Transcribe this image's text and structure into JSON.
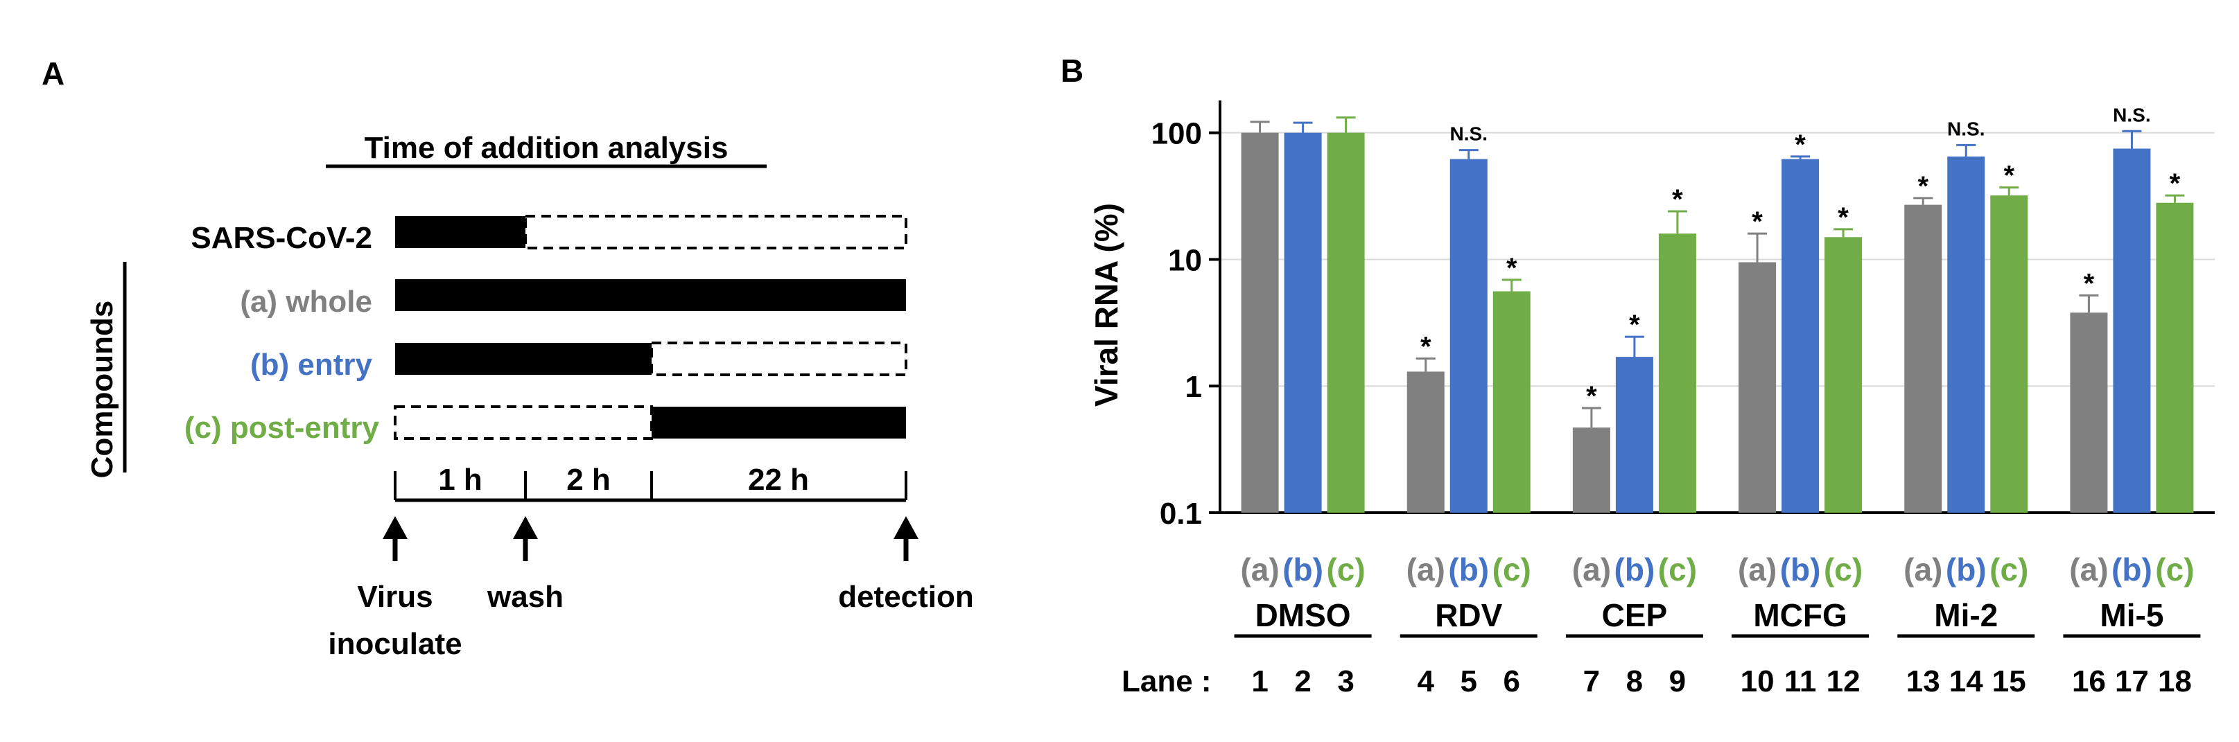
{
  "panel_a": {
    "letter": "A",
    "title": "Time of addition analysis",
    "y_group_label": "Compounds",
    "rows": [
      {
        "label": "SARS-CoV-2",
        "color": "#000000"
      },
      {
        "label": "(a) whole",
        "color": "#808080"
      },
      {
        "label": "(b) entry",
        "color": "#4472C4"
      },
      {
        "label": "(c) post-entry",
        "color": "#70AD47"
      }
    ],
    "timeline": {
      "segments": [
        "1 h",
        "2 h",
        "22 h"
      ],
      "events": [
        {
          "line1": "Virus",
          "line2": "inoculate"
        },
        {
          "line1": "wash",
          "line2": ""
        },
        {
          "line1": "detection",
          "line2": ""
        }
      ]
    }
  },
  "panel_b": {
    "letter": "B",
    "lane_label": "Lane :",
    "group_sublabels": [
      "(a)",
      "(b)",
      "(c)"
    ],
    "colors": {
      "a": "#808080",
      "b": "#4472C4",
      "c": "#70AD47"
    }
  },
  "chart_data": {
    "type": "bar",
    "yscale": "log",
    "ylabel": "Viral RNA (%)",
    "ylim": [
      0.1,
      180
    ],
    "yticks": [
      0.1,
      1,
      10,
      100
    ],
    "ytick_labels": [
      "0.1",
      "1",
      "10",
      "100"
    ],
    "categories": [
      "DMSO",
      "RDV",
      "CEP",
      "MCFG",
      "Mi-2",
      "Mi-5"
    ],
    "lanes": [
      [
        "1",
        "2",
        "3"
      ],
      [
        "4",
        "5",
        "6"
      ],
      [
        "7",
        "8",
        "9"
      ],
      [
        "10",
        "11",
        "12"
      ],
      [
        "13",
        "14",
        "15"
      ],
      [
        "16",
        "17",
        "18"
      ]
    ],
    "series": [
      {
        "name": "(a) whole",
        "color": "#808080",
        "values": [
          100,
          1.3,
          0.47,
          9.5,
          27,
          3.8
        ],
        "errors": [
          22,
          0.35,
          0.2,
          6.5,
          3.5,
          1.4
        ],
        "labels": [
          "",
          "*",
          "*",
          "*",
          "*",
          "*"
        ]
      },
      {
        "name": "(b) entry",
        "color": "#4472C4",
        "values": [
          100,
          62,
          1.7,
          62,
          65,
          75
        ],
        "errors": [
          20,
          11,
          0.75,
          3,
          15,
          28
        ],
        "labels": [
          "",
          "N.S.",
          "*",
          "*",
          "N.S.",
          "N.S."
        ]
      },
      {
        "name": "(c) post-entry",
        "color": "#70AD47",
        "values": [
          100,
          5.6,
          16,
          15,
          32,
          28
        ],
        "errors": [
          32,
          1.3,
          8,
          2.3,
          5,
          4
        ],
        "labels": [
          "",
          "*",
          "*",
          "*",
          "*",
          "*"
        ]
      }
    ]
  }
}
